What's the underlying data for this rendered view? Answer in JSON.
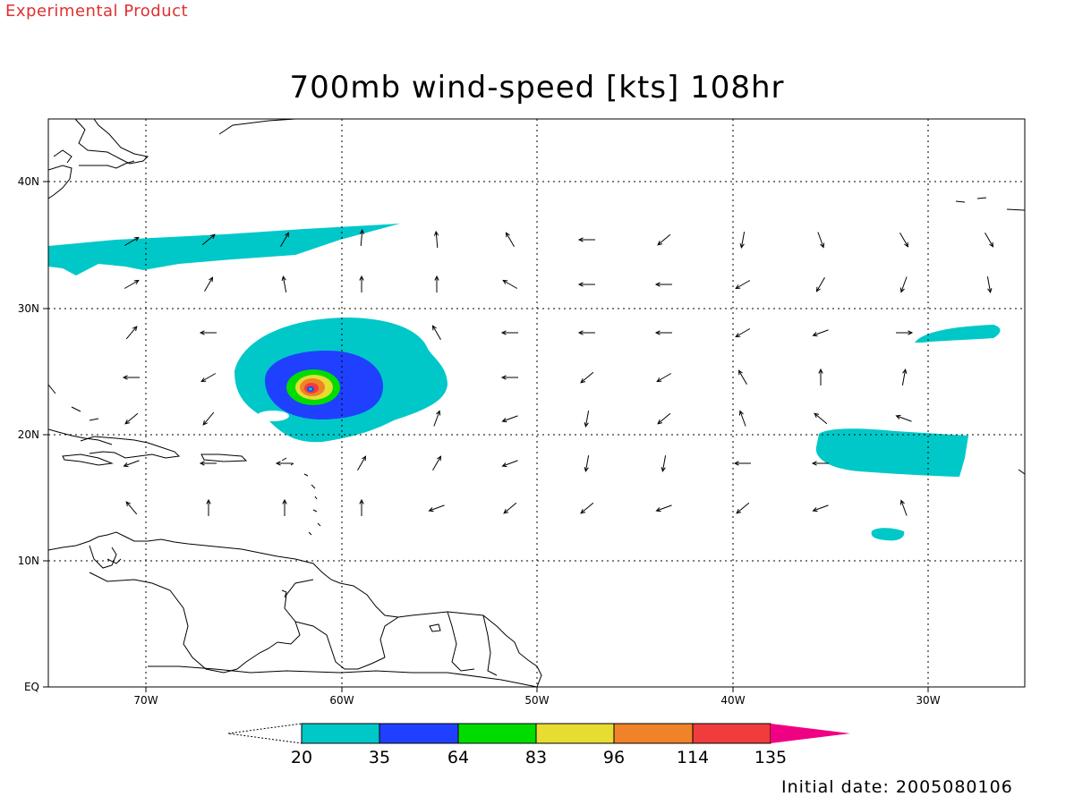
{
  "header": {
    "experimental_label": "Experimental Product",
    "title": "700mb wind-speed [kts] 108hr"
  },
  "axes": {
    "lat_labels": [
      "40N",
      "30N",
      "20N",
      "10N",
      "EQ"
    ],
    "lon_labels": [
      "70W",
      "60W",
      "50W",
      "40W",
      "30W"
    ]
  },
  "colorbar": {
    "thresholds": [
      "20",
      "35",
      "64",
      "83",
      "96",
      "114",
      "135"
    ],
    "colors": [
      "#00c8c8",
      "#2040ff",
      "#00dc00",
      "#e6dc32",
      "#f08228",
      "#f03c3c",
      "#f00082"
    ]
  },
  "footer": {
    "initial_date": "Initial date: 2005080106"
  }
}
